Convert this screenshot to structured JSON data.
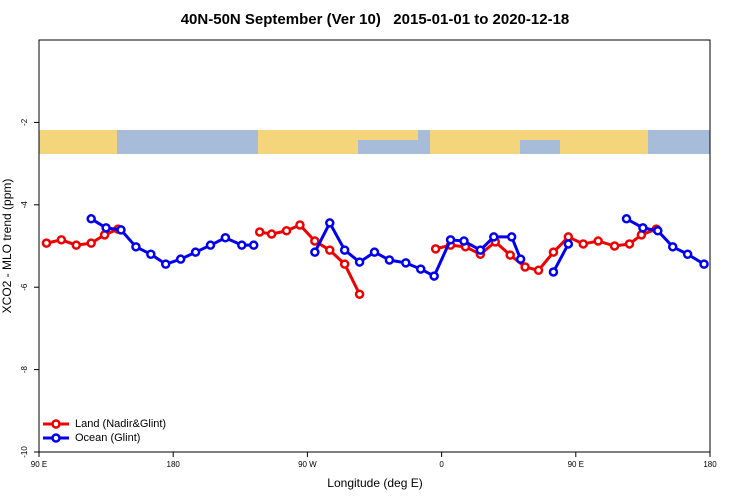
{
  "chart_data": {
    "type": "line",
    "title": "40N-50N September (Ver 10)   2015-01-01 to 2020-12-18",
    "xlabel": "Longitude (deg E)",
    "ylabel": "XCO2 - MLO trend (ppm)",
    "xlim": [
      90,
      540
    ],
    "ylim": [
      -10,
      0
    ],
    "xticks": [
      {
        "value": 90,
        "label": "90 E"
      },
      {
        "value": 180,
        "label": "180"
      },
      {
        "value": 270,
        "label": "90 W"
      },
      {
        "value": 360,
        "label": "0"
      },
      {
        "value": 450,
        "label": "90 E"
      },
      {
        "value": 540,
        "label": "180"
      }
    ],
    "yticks": [
      -10,
      -8,
      -6,
      -4,
      -2
    ],
    "legend": "lower left",
    "series": [
      {
        "name": "Land (Nadir&Glint)",
        "color": "#ee0000",
        "x": [
          95,
          105,
          115,
          125,
          134,
          143,
          null,
          238,
          246,
          256,
          265,
          275,
          285,
          295,
          305,
          null,
          356,
          366,
          376,
          386,
          396,
          406,
          416,
          425,
          435,
          445,
          455,
          465,
          476,
          486,
          494,
          504
        ],
        "values": [
          -4.93,
          -4.85,
          -4.98,
          -4.93,
          -4.73,
          -4.59,
          null,
          -4.66,
          -4.71,
          -4.63,
          -4.49,
          -4.88,
          -5.1,
          -5.44,
          -6.17,
          null,
          -5.07,
          -4.98,
          -5.02,
          -5.2,
          -4.9,
          -5.22,
          -5.51,
          -5.59,
          -5.15,
          -4.78,
          -4.95,
          -4.88,
          -5.0,
          -4.95,
          -4.73,
          -4.59
        ]
      },
      {
        "name": "Ocean (Glint)",
        "color": "#0000ee",
        "x": [
          125,
          135,
          145,
          155,
          165,
          175,
          185,
          195,
          205,
          215,
          226,
          234,
          null,
          275,
          285,
          295,
          305,
          315,
          325,
          336,
          346,
          355,
          366,
          375,
          386,
          395,
          407,
          413,
          null,
          435,
          445,
          null,
          484,
          495,
          505,
          515,
          525,
          536
        ],
        "values": [
          -4.34,
          -4.56,
          -4.61,
          -5.02,
          -5.2,
          -5.44,
          -5.32,
          -5.15,
          -4.98,
          -4.8,
          -4.98,
          -4.98,
          null,
          -5.15,
          -4.44,
          -5.1,
          -5.39,
          -5.15,
          -5.34,
          -5.41,
          -5.56,
          -5.73,
          -4.85,
          -4.88,
          -5.1,
          -4.78,
          -4.78,
          -5.32,
          null,
          -5.63,
          -4.95,
          null,
          -4.34,
          -4.56,
          -4.63,
          -5.02,
          -5.2,
          -5.44
        ]
      }
    ]
  }
}
